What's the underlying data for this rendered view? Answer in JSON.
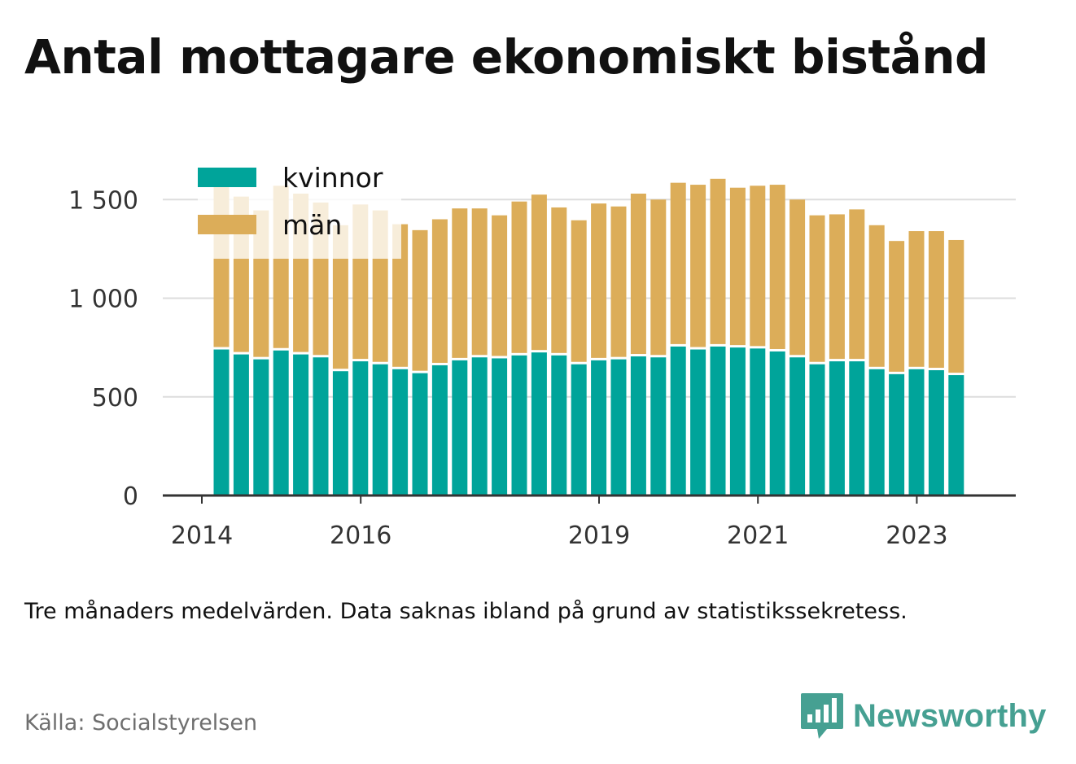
{
  "title": "Antal mottagare ekonomiskt bistånd",
  "note": "Tre månaders medelvärden. Data saknas ibland på grund av statistikssekretess.",
  "source": "Källa: Socialstyrelsen",
  "logo_text": "Newsworthy",
  "colors": {
    "kvinnor": "#00a49a",
    "man": "#dcad59",
    "grid": "#dddddd",
    "axis": "#333333",
    "text": "#333333",
    "logo": "#46a092"
  },
  "chart_data": {
    "type": "bar",
    "stacked": true,
    "ylim": [
      0,
      1600
    ],
    "yticks": [
      0,
      500,
      1000,
      1500
    ],
    "ytick_labels": [
      "0",
      "500",
      "1 000",
      "1 500"
    ],
    "xticks": [
      {
        "label": "2014",
        "index": 0
      },
      {
        "label": "2016",
        "index": 8
      },
      {
        "label": "2019",
        "index": 20
      },
      {
        "label": "2021",
        "index": 28
      },
      {
        "label": "2023",
        "index": 36
      }
    ],
    "legend_position": "top-left",
    "series": [
      {
        "name": "kvinnor",
        "values": [
          740,
          715,
          690,
          735,
          715,
          700,
          630,
          680,
          665,
          640,
          620,
          660,
          685,
          700,
          695,
          710,
          725,
          710,
          665,
          685,
          690,
          705,
          700,
          755,
          740,
          755,
          750,
          745,
          730,
          700,
          665,
          680,
          680,
          640,
          615,
          640,
          635,
          610
        ]
      },
      {
        "name": "män",
        "values": [
          825,
          800,
          755,
          835,
          815,
          785,
          740,
          795,
          780,
          735,
          725,
          740,
          770,
          755,
          725,
          780,
          800,
          750,
          730,
          795,
          775,
          825,
          800,
          830,
          835,
          850,
          810,
          825,
          845,
          800,
          755,
          745,
          770,
          730,
          675,
          700,
          705,
          685
        ]
      }
    ]
  }
}
